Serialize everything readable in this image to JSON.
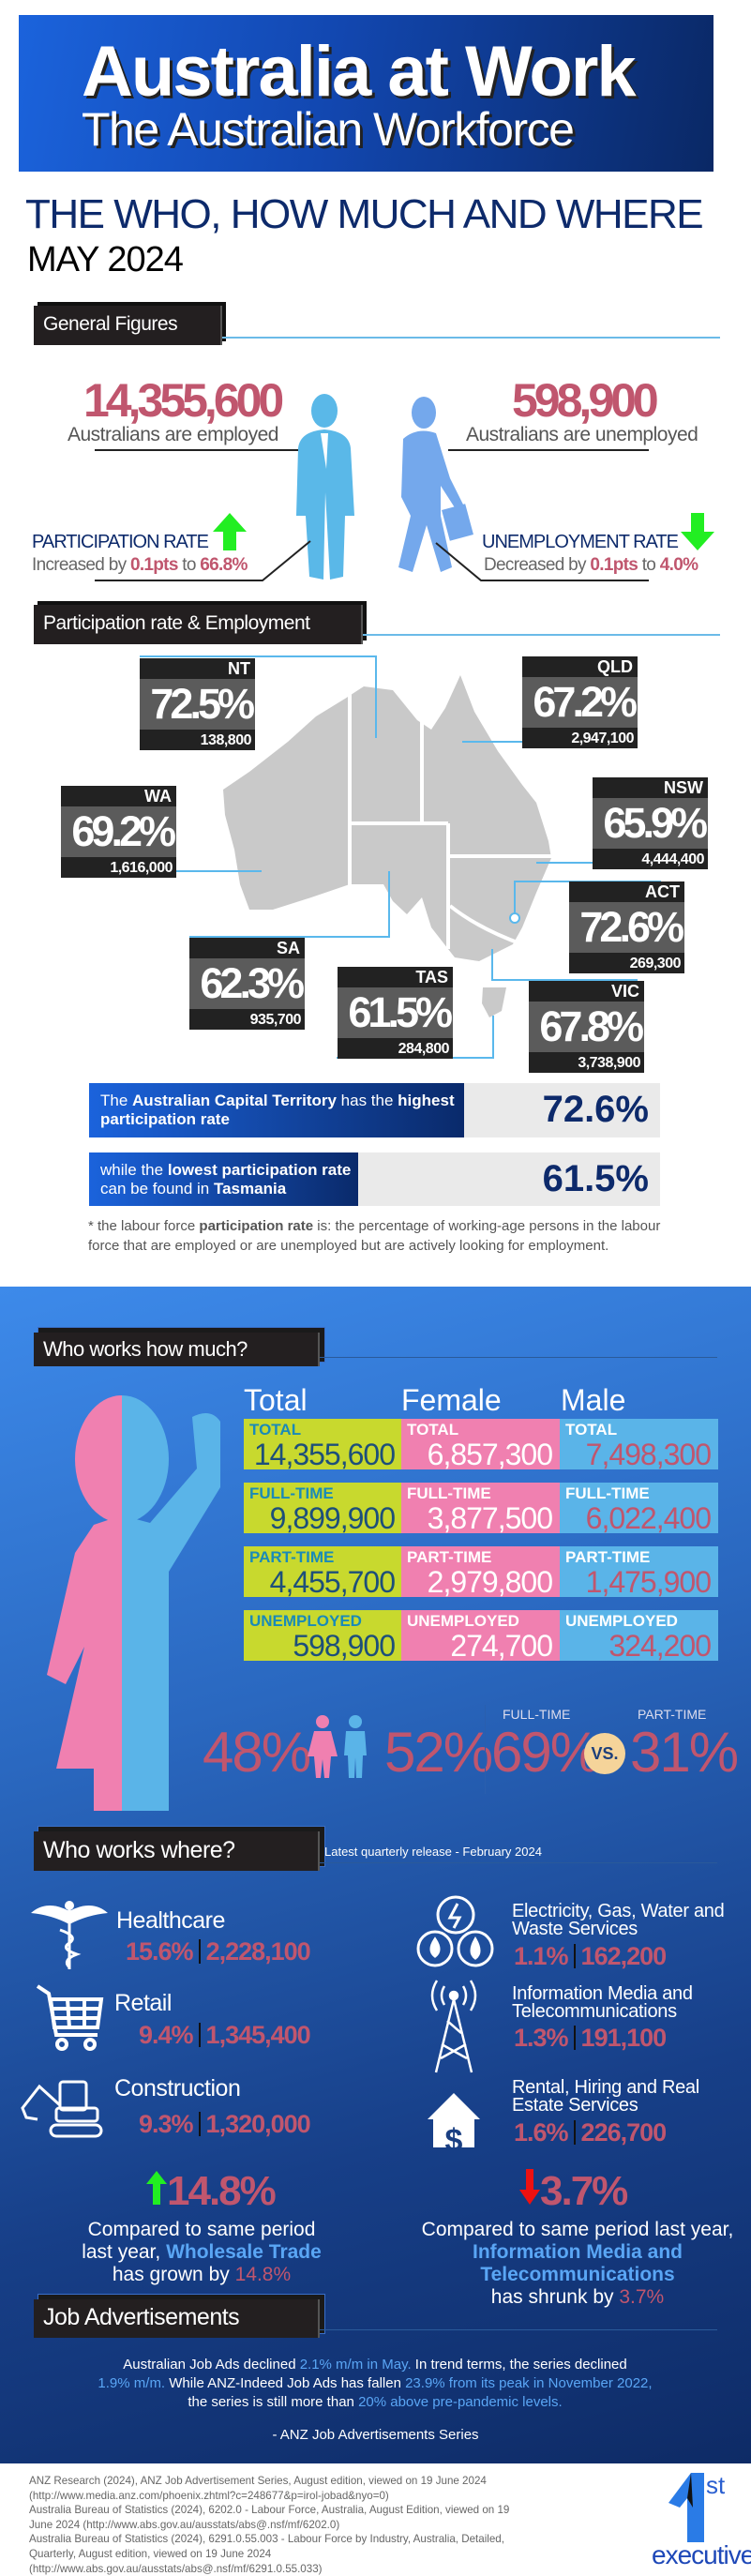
{
  "header": {
    "title": "Australia at Work",
    "subtitle": "The Australian Workforce",
    "headline": "THE WHO, HOW MUCH AND WHERE",
    "date": "MAY 2024"
  },
  "general": {
    "section_label": "General Figures",
    "employed": {
      "value": "14,355,600",
      "label": "Australians are employed"
    },
    "unemployed": {
      "value": "598,900",
      "label": "Australians are unemployed"
    },
    "participation": {
      "label": "PARTICIPATION RATE",
      "prefix": "Increased by ",
      "change": "0.1pts",
      "mid": " to ",
      "value": "66.8%",
      "direction": "up"
    },
    "unemployment_rate": {
      "label": "UNEMPLOYMENT RATE",
      "prefix": "Decreased by ",
      "change": "0.1pts",
      "mid": " to ",
      "value": "4.0%",
      "direction": "down"
    }
  },
  "participation": {
    "section_label": "Participation rate & Employment",
    "states": [
      {
        "code": "NT",
        "rate": "72.5%",
        "employed": "138,800"
      },
      {
        "code": "QLD",
        "rate": "67.2%",
        "employed": "2,947,100"
      },
      {
        "code": "WA",
        "rate": "69.2%",
        "employed": "1,616,000"
      },
      {
        "code": "NSW",
        "rate": "65.9%",
        "employed": "4,444,400"
      },
      {
        "code": "ACT",
        "rate": "72.6%",
        "employed": "269,300"
      },
      {
        "code": "SA",
        "rate": "62.3%",
        "employed": "935,700"
      },
      {
        "code": "TAS",
        "rate": "61.5%",
        "employed": "284,800"
      },
      {
        "code": "VIC",
        "rate": "67.8%",
        "employed": "3,738,900"
      }
    ],
    "highest": {
      "p1": "The ",
      "b1": "Australian Capital Territory",
      "p2": " has the ",
      "b2": "highest participation rate",
      "value": "72.6%"
    },
    "lowest": {
      "p1": "while the ",
      "b1": "lowest participation rate",
      "p2": " can be found in ",
      "b2": "Tasmania",
      "value": "61.5%"
    },
    "footnote": {
      "p1": "* the labour force ",
      "b1": "participation rate",
      "p2": " is: the percentage of working-age persons in the labour force that are employed or are unemployed but are actively looking for employment."
    }
  },
  "how_much": {
    "section_label": "Who works how much?",
    "columns": [
      "Total",
      "Female",
      "Male"
    ],
    "rows": [
      {
        "label": "TOTAL",
        "total": "14,355,600",
        "female": "6,857,300",
        "male": "7,498,300"
      },
      {
        "label": "FULL-TIME",
        "total": "9,899,900",
        "female": "3,877,500",
        "male": "6,022,400"
      },
      {
        "label": "PART-TIME",
        "total": "4,455,700",
        "female": "2,979,800",
        "male": "1,475,900"
      },
      {
        "label": "UNEMPLOYED",
        "total": "598,900",
        "female": "274,700",
        "male": "324,200"
      }
    ],
    "gender": {
      "female_pct": "48%",
      "male_pct": "52%"
    },
    "work_type": {
      "ft_label": "FULL-TIME",
      "ft_pct": "69%",
      "vs": "VS.",
      "pt_label": "PART-TIME",
      "pt_pct": "31%"
    }
  },
  "where": {
    "section_label": "Who works where?",
    "release_note": "Latest quarterly release - February 2024",
    "industries": [
      {
        "name": "Healthcare",
        "pct": "15.6%",
        "count": "2,228,100",
        "icon": "caduceus-icon"
      },
      {
        "name": "Retail",
        "pct": "9.4%",
        "count": "1,345,400",
        "icon": "shopping-cart-icon"
      },
      {
        "name": "Construction",
        "pct": "9.3%",
        "count": "1,320,000",
        "icon": "excavator-icon"
      },
      {
        "name": "Electricity, Gas, Water and Waste Services",
        "pct": "1.1%",
        "count": "162,200",
        "icon": "utilities-icon"
      },
      {
        "name": "Information Media and Telecommunications",
        "pct": "1.3%",
        "count": "191,100",
        "icon": "radio-tower-icon"
      },
      {
        "name": "Rental, Hiring and Real Estate Services",
        "pct": "1.6%",
        "count": "226,700",
        "icon": "house-dollar-icon"
      }
    ],
    "growth": {
      "value": "14.8%",
      "t1": "Compared to same period last year, ",
      "h": "Wholesale Trade",
      "t2": " has grown by ",
      "v": "14.8%"
    },
    "shrink": {
      "value": "3.7%",
      "t1": "Compared to same period last year, ",
      "h": "Information Media and Telecommunications",
      "t2": " has shrunk by ",
      "v": "3.7%"
    }
  },
  "job_ads": {
    "section_label": "Job Advertisements",
    "p": [
      "Australian Job Ads declined ",
      "2.1% m/m in May.",
      " In trend terms, the series declined ",
      "1.9% m/m.",
      " While ANZ-Indeed Job Ads has fallen ",
      "23.9% from its peak in November 2022,",
      " the series is still more than ",
      "20% above pre-pandemic levels."
    ],
    "attribution": "- ANZ Job Advertisements Series"
  },
  "references": [
    "ANZ Research (2024), ANZ Job Advertisement Series, August edition, viewed on 19 June 2024 (http://www.media.anz.com/phoenix.zhtml?c=248677&p=irol-jobad&nyo=0)",
    "Australia Bureau of Statistics (2024), 6202.0 - Labour Force, Australia, August Edition, viewed on 19 June 2024 (http://www.abs.gov.au/ausstats/abs@.nsf/mf/6202.0)",
    "Australia Bureau of Statistics (2024), 6291.0.55.003 - Labour Force by Industry, Australia, Detailed, Quarterly, August edition, viewed on 19 June 2024 (http://www.abs.gov.au/ausstats/abs@.nsf/mf/6291.0.55.033)"
  ],
  "logo": {
    "num": "1",
    "sup": "st",
    "word": "executive"
  },
  "colors": {
    "accent_red": "#c0566e",
    "navy": "#0d2a6b",
    "light_blue": "#5ab4e8",
    "female_pink": "#f080b0",
    "lime": "#c8d92e",
    "up_green": "#22ee22",
    "down_red": "#ee1111"
  }
}
